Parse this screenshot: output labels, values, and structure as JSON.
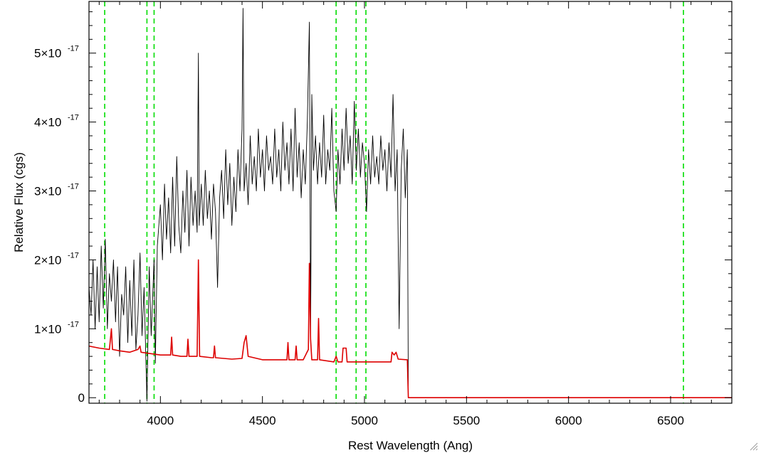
{
  "chart_data": {
    "type": "line",
    "title": "",
    "xlabel": "Rest Wavelength (Ang)",
    "ylabel": "Relative Flux (cgs)",
    "xlim": [
      3650,
      6800
    ],
    "ylim": [
      -0.08,
      5.75
    ],
    "y_scale_note": "x10^-17",
    "grid": false,
    "legend": "none",
    "x_ticks": [
      {
        "value": 4000,
        "label": "4000"
      },
      {
        "value": 4500,
        "label": "4500"
      },
      {
        "value": 5000,
        "label": "5000"
      },
      {
        "value": 5500,
        "label": "5500"
      },
      {
        "value": 6000,
        "label": "6000"
      },
      {
        "value": 6500,
        "label": "6500"
      }
    ],
    "y_ticks": [
      {
        "value": 0,
        "mantissa": "0",
        "base": "",
        "exp": ""
      },
      {
        "value": 1,
        "mantissa": "1",
        "base": "×10",
        "exp": "-17"
      },
      {
        "value": 2,
        "mantissa": "2",
        "base": "×10",
        "exp": "-17"
      },
      {
        "value": 3,
        "mantissa": "3",
        "base": "×10",
        "exp": "-17"
      },
      {
        "value": 4,
        "mantissa": "4",
        "base": "×10",
        "exp": "-17"
      },
      {
        "value": 5,
        "mantissa": "5",
        "base": "×10",
        "exp": "-17"
      }
    ],
    "reference_lines": {
      "color": "#00dd00",
      "style": "dashed",
      "x": [
        3727,
        3934,
        3969,
        4861,
        4959,
        5007,
        6563
      ]
    },
    "series": [
      {
        "color": "#000000",
        "points": [
          [
            3650,
            1.6
          ],
          [
            3660,
            1.2
          ],
          [
            3670,
            2.0
          ],
          [
            3680,
            1.0
          ],
          [
            3690,
            1.9
          ],
          [
            3700,
            1.1
          ],
          [
            3710,
            2.2
          ],
          [
            3720,
            1.3
          ],
          [
            3730,
            2.3
          ],
          [
            3740,
            1.0
          ],
          [
            3750,
            1.8
          ],
          [
            3760,
            1.4
          ],
          [
            3770,
            2.0
          ],
          [
            3780,
            1.1
          ],
          [
            3790,
            1.9
          ],
          [
            3800,
            0.6
          ],
          [
            3810,
            1.5
          ],
          [
            3820,
            1.2
          ],
          [
            3830,
            1.9
          ],
          [
            3840,
            0.8
          ],
          [
            3850,
            1.7
          ],
          [
            3860,
            0.9
          ],
          [
            3870,
            2.0
          ],
          [
            3880,
            0.7
          ],
          [
            3890,
            1.2
          ],
          [
            3900,
            2.1
          ],
          [
            3910,
            0.9
          ],
          [
            3920,
            1.6
          ],
          [
            3934,
            -0.05
          ],
          [
            3945,
            1.9
          ],
          [
            3955,
            0.9
          ],
          [
            3969,
            2.0
          ],
          [
            3975,
            0.5
          ],
          [
            3985,
            2.2
          ],
          [
            4000,
            2.8
          ],
          [
            4010,
            2.0
          ],
          [
            4020,
            3.1
          ],
          [
            4030,
            2.3
          ],
          [
            4040,
            2.9
          ],
          [
            4050,
            2.1
          ],
          [
            4060,
            3.2
          ],
          [
            4070,
            2.2
          ],
          [
            4080,
            3.5
          ],
          [
            4090,
            2.5
          ],
          [
            4100,
            2.1
          ],
          [
            4110,
            3.0
          ],
          [
            4120,
            2.4
          ],
          [
            4130,
            3.3
          ],
          [
            4140,
            2.2
          ],
          [
            4150,
            3.2
          ],
          [
            4160,
            2.5
          ],
          [
            4170,
            3.0
          ],
          [
            4180,
            2.4
          ],
          [
            4186,
            5.0
          ],
          [
            4190,
            2.5
          ],
          [
            4200,
            3.1
          ],
          [
            4210,
            2.5
          ],
          [
            4220,
            3.3
          ],
          [
            4230,
            2.6
          ],
          [
            4240,
            3.0
          ],
          [
            4250,
            2.3
          ],
          [
            4260,
            3.1
          ],
          [
            4270,
            2.7
          ],
          [
            4280,
            1.6
          ],
          [
            4290,
            2.9
          ],
          [
            4300,
            3.3
          ],
          [
            4310,
            2.6
          ],
          [
            4320,
            3.6
          ],
          [
            4330,
            2.8
          ],
          [
            4340,
            3.4
          ],
          [
            4350,
            2.5
          ],
          [
            4360,
            3.2
          ],
          [
            4370,
            2.7
          ],
          [
            4380,
            3.6
          ],
          [
            4390,
            3.0
          ],
          [
            4400,
            3.9
          ],
          [
            4405,
            5.65
          ],
          [
            4410,
            3.0
          ],
          [
            4420,
            3.4
          ],
          [
            4430,
            2.8
          ],
          [
            4440,
            3.8
          ],
          [
            4450,
            3.1
          ],
          [
            4460,
            3.5
          ],
          [
            4470,
            3.0
          ],
          [
            4480,
            3.9
          ],
          [
            4490,
            3.2
          ],
          [
            4500,
            3.6
          ],
          [
            4510,
            3.0
          ],
          [
            4520,
            3.8
          ],
          [
            4530,
            3.3
          ],
          [
            4540,
            3.5
          ],
          [
            4550,
            3.1
          ],
          [
            4560,
            3.9
          ],
          [
            4570,
            3.2
          ],
          [
            4580,
            3.6
          ],
          [
            4590,
            3.0
          ],
          [
            4600,
            4.0
          ],
          [
            4610,
            3.3
          ],
          [
            4620,
            3.7
          ],
          [
            4630,
            3.1
          ],
          [
            4640,
            3.9
          ],
          [
            4650,
            3.0
          ],
          [
            4660,
            4.2
          ],
          [
            4670,
            3.2
          ],
          [
            4680,
            3.7
          ],
          [
            4690,
            2.9
          ],
          [
            4700,
            3.6
          ],
          [
            4710,
            3.1
          ],
          [
            4720,
            4.0
          ],
          [
            4730,
            5.45
          ],
          [
            4736,
            0.9
          ],
          [
            4742,
            4.4
          ],
          [
            4750,
            3.3
          ],
          [
            4760,
            3.8
          ],
          [
            4770,
            3.1
          ],
          [
            4780,
            3.7
          ],
          [
            4790,
            3.2
          ],
          [
            4800,
            4.1
          ],
          [
            4810,
            3.1
          ],
          [
            4820,
            3.6
          ],
          [
            4830,
            3.3
          ],
          [
            4840,
            4.2
          ],
          [
            4850,
            3.0
          ],
          [
            4861,
            2.7
          ],
          [
            4870,
            3.6
          ],
          [
            4880,
            3.1
          ],
          [
            4890,
            3.9
          ],
          [
            4900,
            3.3
          ],
          [
            4910,
            4.2
          ],
          [
            4920,
            3.4
          ],
          [
            4930,
            3.8
          ],
          [
            4940,
            3.1
          ],
          [
            4950,
            4.3
          ],
          [
            4960,
            3.3
          ],
          [
            4970,
            3.9
          ],
          [
            4980,
            3.2
          ],
          [
            4990,
            3.7
          ],
          [
            5000,
            3.4
          ],
          [
            5010,
            2.7
          ],
          [
            5020,
            3.6
          ],
          [
            5030,
            3.1
          ],
          [
            5040,
            3.8
          ],
          [
            5050,
            3.2
          ],
          [
            5060,
            3.5
          ],
          [
            5070,
            3.1
          ],
          [
            5080,
            3.8
          ],
          [
            5090,
            3.3
          ],
          [
            5100,
            3.6
          ],
          [
            5110,
            3.0
          ],
          [
            5120,
            3.7
          ],
          [
            5130,
            3.2
          ],
          [
            5140,
            4.4
          ],
          [
            5150,
            3.0
          ],
          [
            5160,
            3.6
          ],
          [
            5170,
            1.0
          ],
          [
            5180,
            3.3
          ],
          [
            5190,
            3.9
          ],
          [
            5200,
            2.9
          ],
          [
            5210,
            3.6
          ],
          [
            5215,
            0.0
          ],
          [
            6800,
            0.0
          ]
        ]
      },
      {
        "color": "#dd0000",
        "points": [
          [
            3650,
            0.75
          ],
          [
            3700,
            0.72
          ],
          [
            3750,
            0.7
          ],
          [
            3760,
            1.0
          ],
          [
            3765,
            0.7
          ],
          [
            3800,
            0.68
          ],
          [
            3850,
            0.66
          ],
          [
            3890,
            0.7
          ],
          [
            3900,
            0.75
          ],
          [
            3905,
            0.66
          ],
          [
            3950,
            0.64
          ],
          [
            4000,
            0.62
          ],
          [
            4050,
            0.62
          ],
          [
            4055,
            0.88
          ],
          [
            4060,
            0.62
          ],
          [
            4100,
            0.6
          ],
          [
            4130,
            0.6
          ],
          [
            4135,
            0.85
          ],
          [
            4140,
            0.6
          ],
          [
            4180,
            0.6
          ],
          [
            4186,
            2.0
          ],
          [
            4192,
            0.6
          ],
          [
            4250,
            0.58
          ],
          [
            4260,
            0.58
          ],
          [
            4265,
            0.75
          ],
          [
            4270,
            0.58
          ],
          [
            4350,
            0.56
          ],
          [
            4400,
            0.57
          ],
          [
            4410,
            0.8
          ],
          [
            4420,
            0.9
          ],
          [
            4430,
            0.6
          ],
          [
            4500,
            0.55
          ],
          [
            4600,
            0.55
          ],
          [
            4620,
            0.55
          ],
          [
            4625,
            0.8
          ],
          [
            4630,
            0.55
          ],
          [
            4660,
            0.55
          ],
          [
            4665,
            0.75
          ],
          [
            4670,
            0.55
          ],
          [
            4700,
            0.55
          ],
          [
            4725,
            0.7
          ],
          [
            4730,
            1.95
          ],
          [
            4736,
            0.85
          ],
          [
            4742,
            0.55
          ],
          [
            4770,
            0.55
          ],
          [
            4775,
            1.15
          ],
          [
            4780,
            0.55
          ],
          [
            4850,
            0.52
          ],
          [
            4861,
            0.6
          ],
          [
            4870,
            0.52
          ],
          [
            4890,
            0.52
          ],
          [
            4895,
            0.72
          ],
          [
            4910,
            0.72
          ],
          [
            4915,
            0.52
          ],
          [
            4959,
            0.52
          ],
          [
            5007,
            0.52
          ],
          [
            5050,
            0.52
          ],
          [
            5100,
            0.52
          ],
          [
            5130,
            0.52
          ],
          [
            5135,
            0.66
          ],
          [
            5145,
            0.62
          ],
          [
            5155,
            0.66
          ],
          [
            5165,
            0.56
          ],
          [
            5210,
            0.55
          ],
          [
            5215,
            0.0
          ],
          [
            6800,
            0.0
          ]
        ]
      }
    ]
  }
}
